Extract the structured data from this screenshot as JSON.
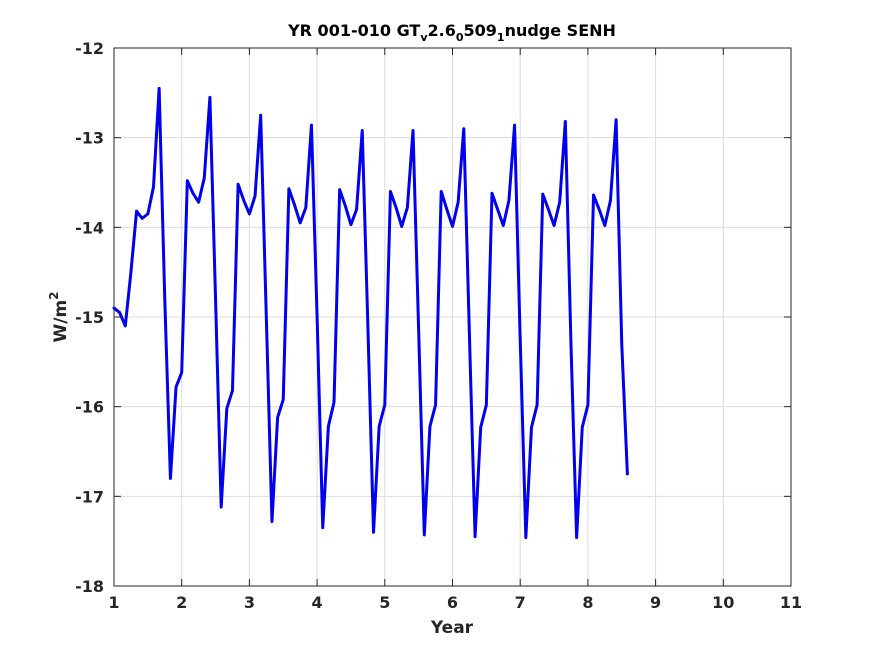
{
  "chart_data": {
    "type": "line",
    "title": {
      "parts": [
        {
          "text": "YR 001-010 GT",
          "sub": false
        },
        {
          "text": "v",
          "sub": true
        },
        {
          "text": "2.6",
          "sub": false
        },
        {
          "text": "0",
          "sub": true
        },
        {
          "text": "509",
          "sub": false
        },
        {
          "text": "1",
          "sub": true
        },
        {
          "text": "nudge SENH",
          "sub": false
        }
      ]
    },
    "xlabel": "Year",
    "ylabel": {
      "base": "W/m",
      "sup": "2"
    },
    "xlim": [
      1,
      11
    ],
    "ylim": [
      -18,
      -12
    ],
    "xticks": [
      1,
      2,
      3,
      4,
      5,
      6,
      7,
      8,
      9,
      10,
      11
    ],
    "yticks": [
      -18,
      -17,
      -16,
      -15,
      -14,
      -13,
      -12
    ],
    "grid": true,
    "series": [
      {
        "color": "#0000ee",
        "x_start": 1,
        "x_step": 0.083333,
        "values": [
          -14.9,
          -14.95,
          -15.1,
          -14.5,
          -13.82,
          -13.9,
          -13.85,
          -13.55,
          -12.45,
          -14.8,
          -16.8,
          -15.78,
          -15.62,
          -13.48,
          -13.62,
          -13.72,
          -13.45,
          -12.55,
          -14.8,
          -17.12,
          -16.02,
          -15.82,
          -13.52,
          -13.7,
          -13.85,
          -13.65,
          -12.75,
          -15.0,
          -17.28,
          -16.12,
          -15.92,
          -13.57,
          -13.75,
          -13.95,
          -13.78,
          -12.86,
          -15.0,
          -17.35,
          -16.22,
          -15.95,
          -13.58,
          -13.76,
          -13.97,
          -13.8,
          -12.92,
          -15.1,
          -17.4,
          -16.22,
          -15.98,
          -13.6,
          -13.78,
          -13.99,
          -13.78,
          -12.92,
          -15.15,
          -17.43,
          -16.22,
          -15.98,
          -13.6,
          -13.8,
          -13.99,
          -13.72,
          -12.9,
          -15.2,
          -17.45,
          -16.23,
          -15.98,
          -13.62,
          -13.8,
          -13.98,
          -13.7,
          -12.86,
          -15.25,
          -17.46,
          -16.23,
          -15.98,
          -13.63,
          -13.8,
          -13.98,
          -13.72,
          -12.82,
          -15.3,
          -17.46,
          -16.23,
          -15.98,
          -13.64,
          -13.8,
          -13.98,
          -13.7,
          -12.8,
          -15.3,
          -16.75
        ]
      }
    ]
  }
}
